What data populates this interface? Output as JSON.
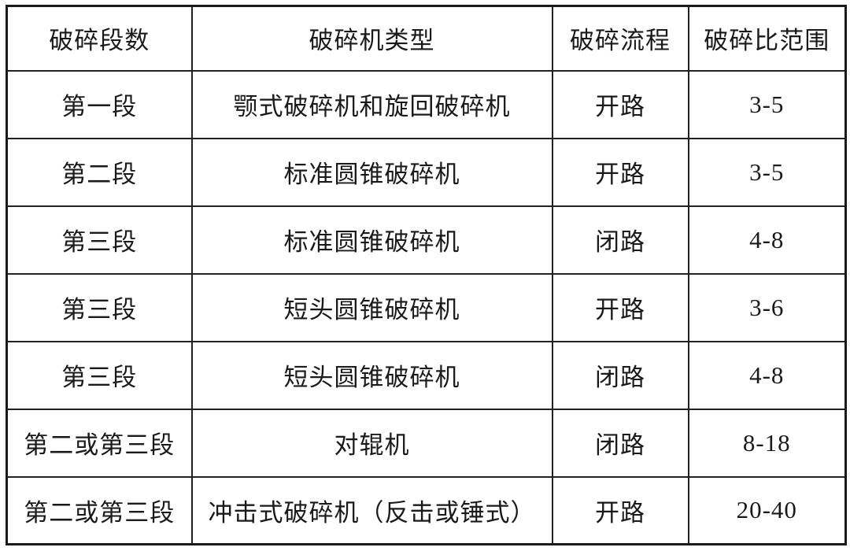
{
  "colors": {
    "background": "#ffffff",
    "border": "#212121",
    "text": "#1a1a1a"
  },
  "table": {
    "headers": [
      "破碎段数",
      "破碎机类型",
      "破碎流程",
      "破碎比范围"
    ],
    "rows": [
      [
        "第一段",
        "颚式破碎机和旋回破碎机",
        "开路",
        "3-5"
      ],
      [
        "第二段",
        "标准圆锥破碎机",
        "开路",
        "3-5"
      ],
      [
        "第三段",
        "标准圆锥破碎机",
        "闭路",
        "4-8"
      ],
      [
        "第三段",
        "短头圆锥破碎机",
        "开路",
        "3-6"
      ],
      [
        "第三段",
        "短头圆锥破碎机",
        "闭路",
        "4-8"
      ],
      [
        "第二或第三段",
        "对辊机",
        "闭路",
        "8-18"
      ],
      [
        "第二或第三段",
        "冲击式破碎机（反击或锤式）",
        "开路",
        "20-40"
      ]
    ]
  },
  "chart_data": {
    "type": "table",
    "title": "",
    "columns": [
      "破碎段数",
      "破碎机类型",
      "破碎流程",
      "破碎比范围"
    ],
    "rows": [
      {
        "stage": "第一段",
        "crusher_type": "颚式破碎机和旋回破碎机",
        "process": "开路",
        "ratio_range": "3-5"
      },
      {
        "stage": "第二段",
        "crusher_type": "标准圆锥破碎机",
        "process": "开路",
        "ratio_range": "3-5"
      },
      {
        "stage": "第三段",
        "crusher_type": "标准圆锥破碎机",
        "process": "闭路",
        "ratio_range": "4-8"
      },
      {
        "stage": "第三段",
        "crusher_type": "短头圆锥破碎机",
        "process": "开路",
        "ratio_range": "3-6"
      },
      {
        "stage": "第三段",
        "crusher_type": "短头圆锥破碎机",
        "process": "闭路",
        "ratio_range": "4-8"
      },
      {
        "stage": "第二或第三段",
        "crusher_type": "对辊机",
        "process": "闭路",
        "ratio_range": "8-18"
      },
      {
        "stage": "第二或第三段",
        "crusher_type": "冲击式破碎机（反击或锤式）",
        "process": "开路",
        "ratio_range": "20-40"
      }
    ],
    "ratio_ranges_numeric": [
      [
        3,
        5
      ],
      [
        3,
        5
      ],
      [
        4,
        8
      ],
      [
        3,
        6
      ],
      [
        4,
        8
      ],
      [
        8,
        18
      ],
      [
        20,
        40
      ]
    ]
  }
}
